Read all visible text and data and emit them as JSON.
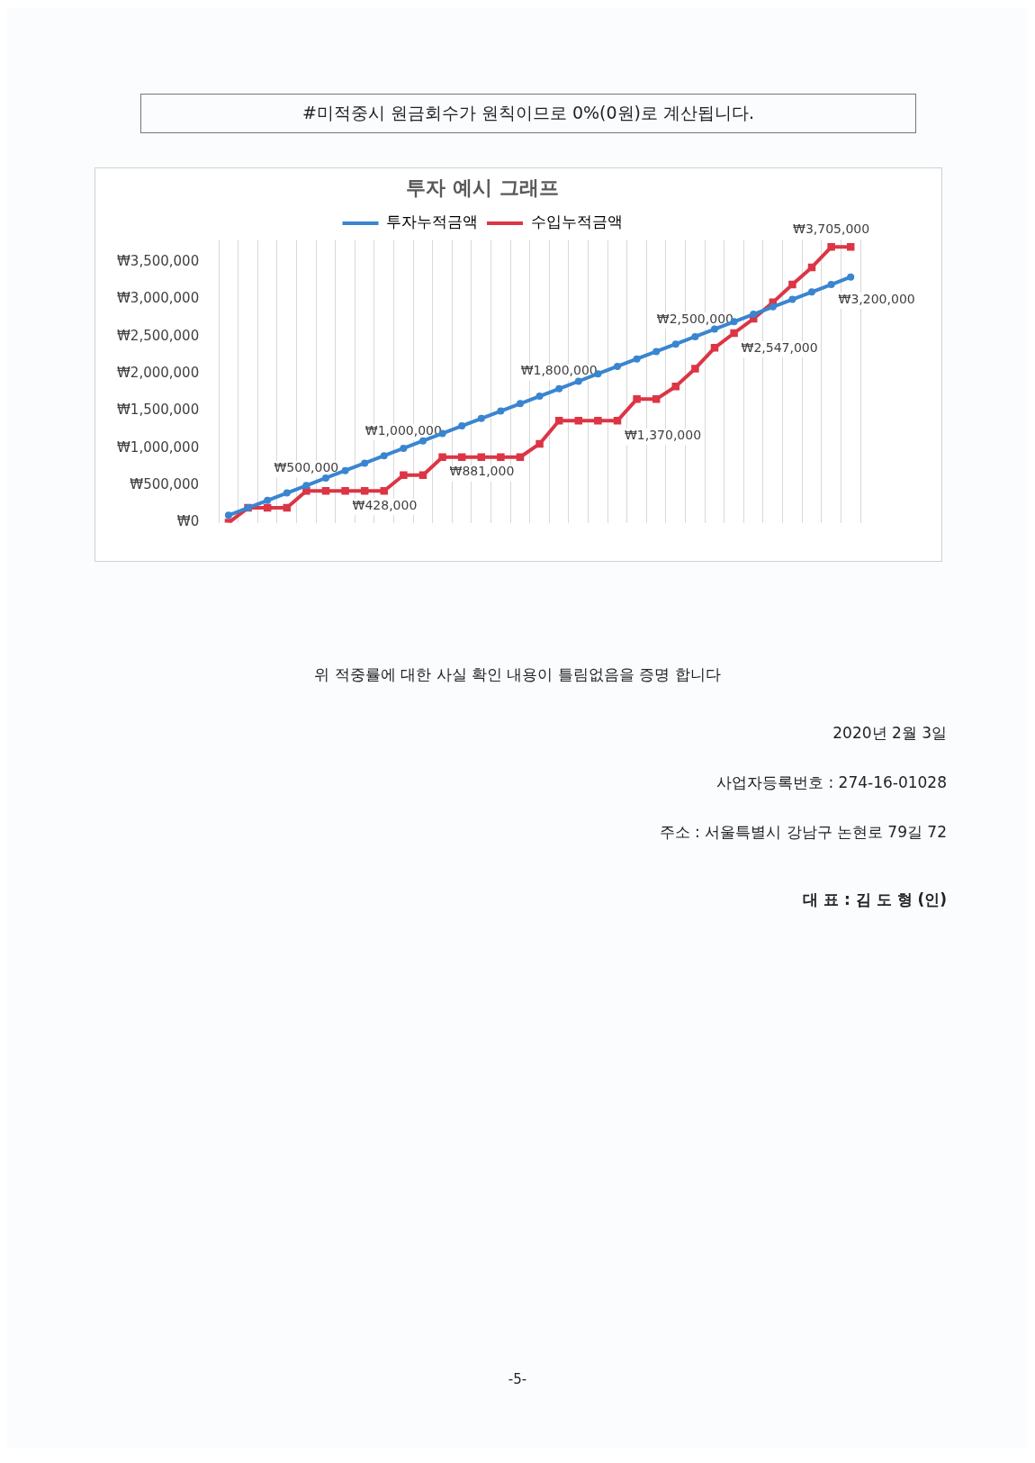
{
  "chart_data": {
    "type": "line",
    "title": "투자 예시 그래프",
    "categories": [
      null,
      null,
      null,
      null,
      null,
      null,
      null,
      null,
      null,
      null,
      null,
      null,
      null,
      null,
      null,
      null,
      null,
      null,
      null,
      null,
      null,
      null,
      null,
      null,
      null,
      null,
      null,
      null,
      null,
      null,
      null,
      null,
      null
    ],
    "series": [
      {
        "name": "투자누적금액",
        "color": "#3a85d0",
        "marker": "circle",
        "values": [
          100000,
          200000,
          300000,
          400000,
          500000,
          600000,
          700000,
          800000,
          900000,
          1000000,
          1100000,
          1200000,
          1300000,
          1400000,
          1500000,
          1600000,
          1700000,
          1800000,
          1900000,
          2000000,
          2100000,
          2200000,
          2300000,
          2400000,
          2500000,
          2600000,
          2700000,
          2800000,
          2900000,
          3000000,
          3100000,
          3200000,
          3300000
        ],
        "value_labels": [
          null,
          null,
          null,
          null,
          "₩500,000",
          null,
          null,
          null,
          null,
          "₩1,000,000",
          null,
          null,
          null,
          null,
          null,
          null,
          null,
          "₩1,800,000",
          null,
          null,
          null,
          null,
          null,
          null,
          "₩2,500,000",
          null,
          null,
          null,
          null,
          null,
          null,
          "₩3,200,000",
          null
        ]
      },
      {
        "name": "수입누적금액",
        "color": "#dc3545",
        "marker": "square",
        "values": [
          0,
          200000,
          200000,
          200000,
          428000,
          428000,
          428000,
          428000,
          428000,
          640000,
          640000,
          881000,
          881000,
          881000,
          881000,
          881000,
          1060000,
          1370000,
          1370000,
          1370000,
          1370000,
          1660000,
          1660000,
          1830000,
          2070000,
          2350000,
          2547000,
          2740000,
          2960000,
          3200000,
          3430000,
          3705000,
          3705000
        ],
        "value_labels": [
          null,
          null,
          null,
          null,
          null,
          null,
          "₩428,000",
          null,
          null,
          null,
          null,
          "₩881,000",
          null,
          null,
          null,
          null,
          null,
          null,
          null,
          null,
          "₩1,370,000",
          null,
          null,
          null,
          null,
          null,
          "₩2,547,000",
          null,
          null,
          null,
          null,
          "₩3,705,000",
          null
        ]
      }
    ],
    "ylim": [
      0,
      3800000
    ],
    "yticks": [
      {
        "value": 0,
        "label": "₩0"
      },
      {
        "value": 500000,
        "label": "₩500,000"
      },
      {
        "value": 1000000,
        "label": "₩1,000,000"
      },
      {
        "value": 1500000,
        "label": "₩1,500,000"
      },
      {
        "value": 2000000,
        "label": "₩2,000,000"
      },
      {
        "value": 2500000,
        "label": "₩2,500,000"
      },
      {
        "value": 3000000,
        "label": "₩3,000,000"
      },
      {
        "value": 3500000,
        "label": "₩3,500,000"
      }
    ],
    "grid": "x",
    "legend": "top",
    "line_style": "solid",
    "annotations": [
      "#미적중시 원금회수가 원칙이므로 0%(0원)로 계산됩니다.",
      "위 적중률에 대한 사실 확인 내용이 틀림없음을 증명 합니다",
      "2020년 2월 3일",
      "사업자등록번호 : 274-16-01028",
      "주소 : 서울특별시 강남구 논현로 79길 72",
      "대 표 : 김 도 형 (인)",
      "-5-"
    ]
  }
}
